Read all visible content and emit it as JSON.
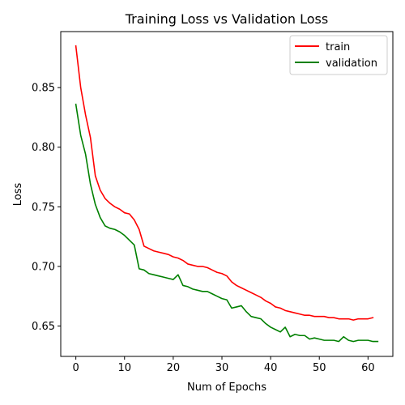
{
  "chart_data": {
    "type": "line",
    "title": "Training Loss vs Validation Loss",
    "xlabel": "Num of Epochs",
    "ylabel": "Loss",
    "xlim": [
      -3.1,
      65.1
    ],
    "ylim": [
      0.6245,
      0.897
    ],
    "xticks": [
      0,
      10,
      20,
      30,
      40,
      50,
      60
    ],
    "yticks": [
      0.65,
      0.7,
      0.75,
      0.8,
      0.85
    ],
    "grid": false,
    "legend_position": "top-right",
    "series": [
      {
        "name": "train",
        "color": "#ff0000",
        "values": [
          0.885,
          0.85,
          0.827,
          0.808,
          0.776,
          0.764,
          0.757,
          0.753,
          0.75,
          0.748,
          0.745,
          0.744,
          0.739,
          0.731,
          0.717,
          0.715,
          0.713,
          0.712,
          0.711,
          0.71,
          0.708,
          0.707,
          0.705,
          0.702,
          0.701,
          0.7,
          0.7,
          0.699,
          0.697,
          0.695,
          0.694,
          0.692,
          0.687,
          0.684,
          0.682,
          0.68,
          0.678,
          0.676,
          0.674,
          0.671,
          0.669,
          0.666,
          0.665,
          0.663,
          0.662,
          0.661,
          0.66,
          0.659,
          0.659,
          0.658,
          0.658,
          0.658,
          0.657,
          0.657,
          0.656,
          0.656,
          0.656,
          0.655,
          0.656,
          0.656,
          0.656,
          0.657
        ]
      },
      {
        "name": "validation",
        "color": "#008000",
        "values": [
          0.836,
          0.81,
          0.794,
          0.769,
          0.752,
          0.741,
          0.734,
          0.732,
          0.731,
          0.729,
          0.726,
          0.722,
          0.718,
          0.698,
          0.697,
          0.694,
          0.693,
          0.692,
          0.691,
          0.69,
          0.689,
          0.693,
          0.684,
          0.683,
          0.681,
          0.68,
          0.679,
          0.679,
          0.677,
          0.675,
          0.673,
          0.672,
          0.665,
          0.666,
          0.667,
          0.662,
          0.658,
          0.657,
          0.656,
          0.652,
          0.649,
          0.647,
          0.645,
          0.649,
          0.641,
          0.643,
          0.642,
          0.642,
          0.639,
          0.64,
          0.639,
          0.638,
          0.638,
          0.638,
          0.637,
          0.641,
          0.638,
          0.637,
          0.638,
          0.638,
          0.638,
          0.637,
          0.637
        ]
      }
    ]
  }
}
